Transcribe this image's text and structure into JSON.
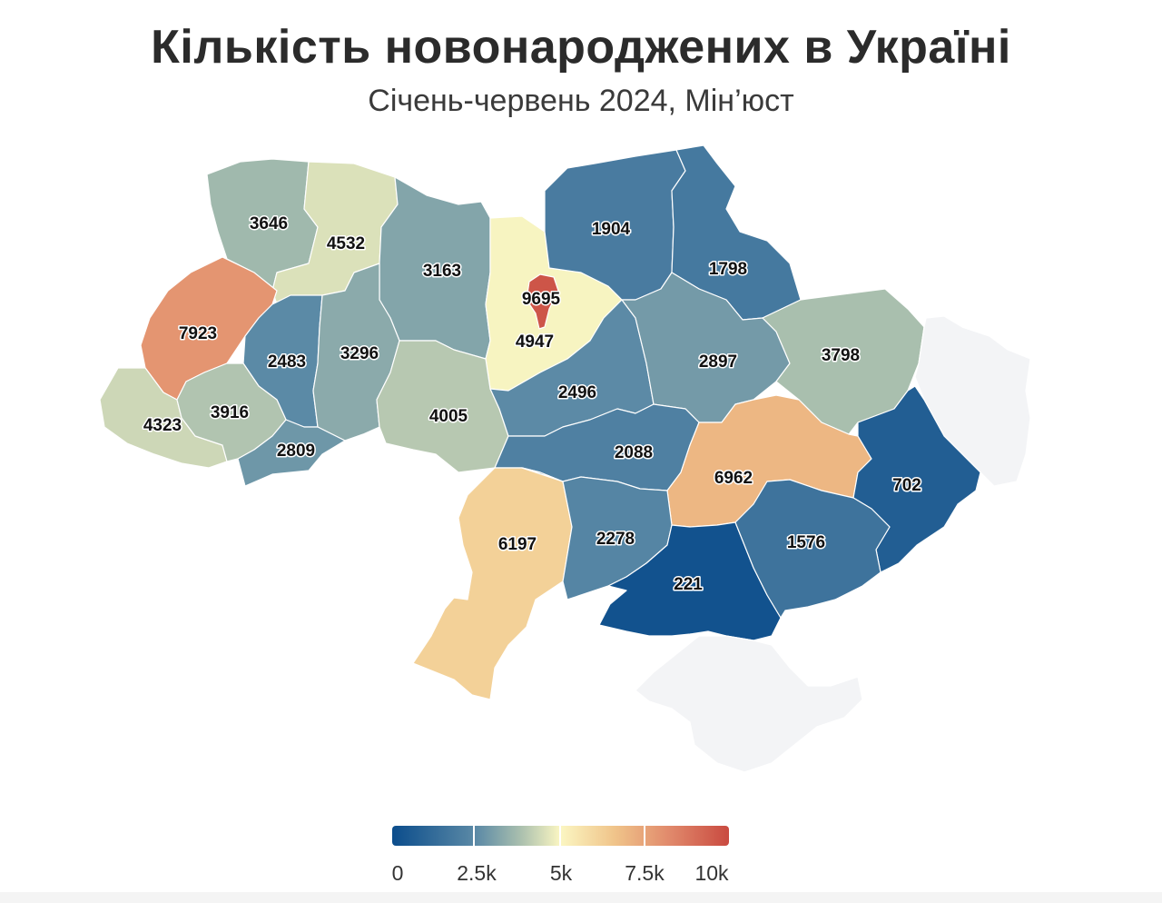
{
  "title": "Кількість новонароджених в Україні",
  "subtitle": "Січень-червень 2024, Мін’юст",
  "colors": {
    "low": "#0b4d8c",
    "mid": "#fbf6c2",
    "high": "#c94a40",
    "no_data": "#f3f4f6"
  },
  "regions": [
    {
      "id": "volyn",
      "value": 3646
    },
    {
      "id": "rivne",
      "value": 4532
    },
    {
      "id": "zhytomyr",
      "value": 3163
    },
    {
      "id": "kyiv-oblast",
      "value": 4947
    },
    {
      "id": "kyiv-city",
      "value": 9695
    },
    {
      "id": "chernihiv",
      "value": 1904
    },
    {
      "id": "sumy",
      "value": 1798
    },
    {
      "id": "lviv",
      "value": 7923
    },
    {
      "id": "ternopil",
      "value": 2483
    },
    {
      "id": "khmelnytskyi",
      "value": 3296
    },
    {
      "id": "vinnytsia",
      "value": 4005
    },
    {
      "id": "cherkasy",
      "value": 2496
    },
    {
      "id": "poltava",
      "value": 2897
    },
    {
      "id": "kharkiv",
      "value": 3798
    },
    {
      "id": "zakarpattia",
      "value": 4323
    },
    {
      "id": "ivano-frankivsk",
      "value": 3916
    },
    {
      "id": "chernivtsi",
      "value": 2809
    },
    {
      "id": "kirovohrad",
      "value": 2088
    },
    {
      "id": "dnipropetrovsk",
      "value": 6962
    },
    {
      "id": "luhansk",
      "value": null
    },
    {
      "id": "donetsk",
      "value": 702
    },
    {
      "id": "odesa",
      "value": 6197
    },
    {
      "id": "mykolaiv",
      "value": 2278
    },
    {
      "id": "kherson",
      "value": 221
    },
    {
      "id": "zaporizhzhia",
      "value": 1576
    },
    {
      "id": "crimea",
      "value": null
    }
  ],
  "legend": {
    "min": 0,
    "max": 10000,
    "tick_labels": [
      "0",
      "2.5k",
      "5k",
      "7.5k",
      "10k"
    ]
  }
}
